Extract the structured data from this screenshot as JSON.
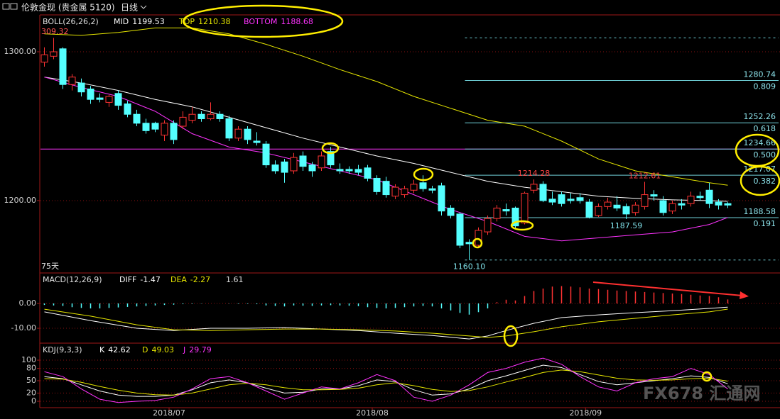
{
  "header": {
    "title": "伦敦金现 (贵金属 5120)",
    "period": "日线"
  },
  "watermark": "FX678 汇通网",
  "x_labels": [
    {
      "value": 13.5,
      "label": "2018/07"
    },
    {
      "value": 35.5,
      "label": "2018/08"
    },
    {
      "value": 58.6,
      "label": "2018/09"
    }
  ],
  "chart_data": [
    {
      "type": "candlestick",
      "indicator": "BOLL(26,26,2)",
      "up_color": "#ff3333",
      "down_color": "#54ffff",
      "open": [
        1293,
        1297,
        1302,
        1278,
        1279,
        1275,
        1269,
        1266,
        1272,
        1265,
        1258,
        1252,
        1252,
        1244,
        1252,
        1250,
        1254,
        1258,
        1255,
        1258,
        1255,
        1242,
        1248,
        1240,
        1238,
        1224,
        1226,
        1220,
        1230,
        1224,
        1222,
        1233,
        1221,
        1221,
        1221,
        1222,
        1215,
        1213,
        1203,
        1204,
        1207,
        1212,
        1208,
        1210,
        1195,
        1191,
        1172,
        1170,
        1179,
        1188,
        1194,
        1195,
        1185,
        1207,
        1211,
        1201,
        1204,
        1201,
        1202,
        1199,
        1190,
        1196,
        1197,
        1196,
        1192,
        1196,
        1204,
        1200,
        1193,
        1198,
        1198,
        1203,
        1207,
        1199,
        1198
      ],
      "high": [
        1303,
        1309.32,
        1303,
        1285,
        1282,
        1277,
        1272,
        1271,
        1274,
        1267,
        1261,
        1255,
        1253,
        1254,
        1254,
        1260,
        1263,
        1260,
        1266,
        1260,
        1257,
        1250,
        1250,
        1246,
        1240,
        1227,
        1228,
        1232,
        1233,
        1226,
        1233,
        1236,
        1225,
        1223,
        1224,
        1224,
        1217,
        1216,
        1211,
        1210,
        1214,
        1217,
        1210,
        1212,
        1197,
        1192,
        1174,
        1182,
        1190,
        1197,
        1198,
        1196,
        1206,
        1214.28,
        1213,
        1206,
        1206,
        1205,
        1205,
        1201,
        1198,
        1202,
        1203,
        1198,
        1199,
        1212.61,
        1207,
        1203,
        1200,
        1201,
        1206,
        1206,
        1212,
        1201,
        1199
      ],
      "low": [
        1290,
        1295,
        1275,
        1274,
        1270,
        1265,
        1266,
        1263,
        1261,
        1256,
        1250,
        1245,
        1246,
        1240,
        1238,
        1248,
        1252,
        1253,
        1254,
        1253,
        1240,
        1240,
        1238,
        1237,
        1222,
        1218,
        1212,
        1218,
        1220,
        1216,
        1220,
        1222,
        1218,
        1218,
        1217,
        1213,
        1204,
        1202,
        1201,
        1202,
        1205,
        1206,
        1205,
        1190,
        1188,
        1168,
        1160.1,
        1168,
        1177,
        1186,
        1190,
        1181,
        1184,
        1205,
        1199,
        1197,
        1196,
        1198,
        1198,
        1188,
        1189,
        1194,
        1193,
        1187.59,
        1190,
        1194,
        1200,
        1190,
        1191,
        1194,
        1196,
        1200,
        1195,
        1194,
        1195
      ],
      "close": [
        1298,
        1300,
        1278,
        1283,
        1273,
        1268,
        1268,
        1270,
        1264,
        1258,
        1252,
        1247,
        1248,
        1252,
        1241,
        1256,
        1258,
        1255,
        1258,
        1255,
        1242,
        1248,
        1241,
        1239,
        1224,
        1220,
        1219,
        1229,
        1223,
        1220,
        1230,
        1224,
        1220,
        1220,
        1219,
        1215,
        1206,
        1204,
        1209,
        1208,
        1211,
        1208,
        1207,
        1193,
        1190,
        1170,
        1171,
        1180,
        1188,
        1195,
        1193,
        1183,
        1205,
        1211,
        1200,
        1199,
        1198,
        1200,
        1200,
        1189,
        1196,
        1199,
        1195,
        1191,
        1197,
        1204,
        1203,
        1192,
        1198,
        1197,
        1203,
        1202,
        1198,
        1197,
        1197
      ],
      "lines": [
        {
          "name": "MID",
          "current": 1199.53,
          "color": "#ffffff",
          "x": [
            0,
            4,
            8,
            12,
            16,
            20,
            24,
            28,
            32,
            36,
            40,
            44,
            48,
            52,
            56,
            60,
            64,
            68,
            72,
            74
          ],
          "values": [
            1283,
            1279,
            1274,
            1268,
            1263,
            1256,
            1249,
            1242,
            1236,
            1230,
            1225,
            1219,
            1213,
            1209,
            1206,
            1203,
            1201.5,
            1200.5,
            1200,
            1199.53
          ]
        },
        {
          "name": "TOP",
          "current": 1210.38,
          "color": "#e6e600",
          "x": [
            0,
            4,
            8,
            12,
            16,
            20,
            24,
            28,
            32,
            36,
            40,
            44,
            48,
            52,
            56,
            60,
            64,
            68,
            72,
            74
          ],
          "values": [
            1312,
            1311,
            1313,
            1316,
            1316,
            1312,
            1305,
            1297,
            1288,
            1280,
            1270,
            1262,
            1254,
            1250,
            1240,
            1228,
            1220,
            1216,
            1212,
            1210.38
          ]
        },
        {
          "name": "BOTTOM",
          "current": 1188.68,
          "color": "#ff33ff",
          "x": [
            0,
            4,
            8,
            12,
            16,
            20,
            24,
            28,
            32,
            36,
            40,
            44,
            48,
            52,
            56,
            60,
            64,
            68,
            72,
            74
          ],
          "values": [
            1283,
            1276,
            1270,
            1260,
            1245,
            1236,
            1232,
            1226,
            1220,
            1214,
            1204,
            1194,
            1186,
            1176,
            1173,
            1175,
            1177,
            1179,
            1184,
            1188.68
          ]
        }
      ],
      "fib_levels": [
        {
          "value": 1309.32
        },
        {
          "value": 1280.74,
          "ratio": "0.809"
        },
        {
          "value": 1252.26,
          "ratio": "0.618"
        },
        {
          "value": 1234.66,
          "ratio": "0.500"
        },
        {
          "value": 1217.07,
          "ratio": "0.382"
        },
        {
          "value": 1188.58,
          "ratio": "0.191"
        },
        {
          "value": 1160.1
        }
      ],
      "support_line": {
        "value": 1234.66,
        "color": "#ff33ff"
      },
      "annotations": [
        {
          "label": "1214.28",
          "value": 1214.28,
          "color": "#ff4444"
        },
        {
          "label": "1212.61",
          "value": 1212.61,
          "color": "#ff4444"
        },
        {
          "label": "1187.59",
          "value": 1187.59,
          "color": "#7fe0e8"
        },
        {
          "label": "1160.10",
          "value": 1160.1,
          "color": "#7fe0e8"
        }
      ],
      "high_label": "309.32",
      "period_label": "75天",
      "ylim": [
        1151.4,
        1324.3
      ],
      "yticks": [
        {
          "value": 1200,
          "label": "1200.00"
        },
        {
          "value": 1300,
          "label": "1300.00"
        }
      ]
    },
    {
      "type": "macd",
      "indicator": "MACD(12,26,9)",
      "up_color": "#ff3333",
      "down_color": "#54ffff",
      "histogram": [
        -0.6,
        -0.8,
        -1,
        -1.5,
        -1.8,
        -2,
        -2,
        -1.8,
        -1.6,
        -1.4,
        -1.2,
        -1,
        -0.8,
        -0.6,
        -0.5,
        -0.3,
        -0.2,
        -0.1,
        0,
        0,
        -0.1,
        -0.2,
        -0.2,
        -0.3,
        -0.8,
        -1,
        -1.2,
        -0.8,
        -0.9,
        -1,
        -0.8,
        -0.7,
        -0.8,
        -0.9,
        -1.1,
        -1.5,
        -1.8,
        -2,
        -1.8,
        -1.5,
        -1.2,
        -1,
        -1.2,
        -2,
        -2.8,
        -3.8,
        -4.5,
        -3.5,
        -2,
        0.5,
        1.5,
        1.2,
        3,
        5,
        6,
        6.8,
        7,
        6.8,
        6.5,
        6,
        5.8,
        5.5,
        5.2,
        5,
        4.8,
        4.6,
        4.4,
        4.2,
        4,
        3.8,
        3.5,
        3.2,
        3,
        2.5,
        1.61
      ],
      "series": [
        {
          "name": "DIFF",
          "current": -1.47,
          "color": "#ffffff",
          "x": [
            0,
            5,
            10,
            14,
            18,
            22,
            26,
            30,
            34,
            38,
            42,
            46,
            48,
            50,
            53,
            56,
            60,
            64,
            68,
            72,
            74
          ],
          "values": [
            -3.4,
            -6.9,
            -10,
            -10.9,
            -10,
            -10,
            -9.7,
            -10.3,
            -10.9,
            -12,
            -12.9,
            -14.3,
            -13.1,
            -10.9,
            -8,
            -5.7,
            -4.6,
            -3.7,
            -2.9,
            -2,
            -1.47
          ]
        },
        {
          "name": "DEA",
          "current": -2.27,
          "color": "#e6e600",
          "x": [
            0,
            5,
            10,
            14,
            18,
            22,
            26,
            30,
            34,
            38,
            42,
            46,
            48,
            50,
            53,
            56,
            60,
            64,
            68,
            72,
            74
          ],
          "values": [
            -2.3,
            -5.1,
            -8.6,
            -10.6,
            -10.9,
            -10.6,
            -10.3,
            -10.3,
            -10.6,
            -11.1,
            -12,
            -13.1,
            -13.7,
            -13.1,
            -11.4,
            -9.4,
            -7.4,
            -6,
            -4.6,
            -3.4,
            -2.27
          ]
        }
      ],
      "ylim": [
        -15.7,
        12
      ],
      "yticks": [
        {
          "value": 0,
          "label": "0.00"
        },
        {
          "value": -10,
          "label": "-10.00"
        }
      ]
    },
    {
      "type": "line",
      "indicator": "KDJ(9,3,3)",
      "x": [
        0,
        2,
        4,
        6,
        8,
        10,
        12,
        14,
        16,
        18,
        20,
        22,
        24,
        26,
        28,
        30,
        32,
        34,
        36,
        38,
        40,
        42,
        44,
        46,
        48,
        50,
        52,
        54,
        56,
        58,
        60,
        62,
        64,
        66,
        68,
        70,
        72,
        74
      ],
      "series": [
        {
          "name": "K",
          "current": 42.62,
          "color": "#ffffff",
          "values": [
            60,
            55,
            40,
            25,
            15,
            12,
            12,
            15,
            28,
            45,
            52,
            45,
            32,
            20,
            22,
            30,
            30,
            38,
            52,
            48,
            28,
            15,
            18,
            30,
            50,
            62,
            75,
            88,
            82,
            65,
            48,
            40,
            45,
            50,
            55,
            62,
            58,
            42.62
          ]
        },
        {
          "name": "D",
          "current": 49.03,
          "color": "#e6e600",
          "values": [
            55,
            54,
            46,
            36,
            27,
            20,
            16,
            15,
            20,
            30,
            40,
            44,
            40,
            33,
            28,
            28,
            29,
            32,
            40,
            45,
            38,
            29,
            24,
            26,
            35,
            47,
            58,
            70,
            76,
            72,
            64,
            56,
            52,
            51,
            52,
            55,
            56,
            49.03
          ]
        },
        {
          "name": "J",
          "current": 29.79,
          "color": "#ff33ff",
          "values": [
            72,
            60,
            30,
            5,
            -3,
            0,
            2,
            10,
            30,
            55,
            60,
            45,
            25,
            5,
            20,
            35,
            30,
            45,
            65,
            50,
            10,
            0,
            15,
            40,
            70,
            80,
            95,
            105,
            90,
            60,
            35,
            25,
            45,
            55,
            60,
            80,
            65,
            29.79
          ]
        }
      ],
      "ylim": [
        -15.5,
        139.7
      ],
      "yticks": [
        0,
        20,
        50,
        80,
        100
      ]
    }
  ]
}
